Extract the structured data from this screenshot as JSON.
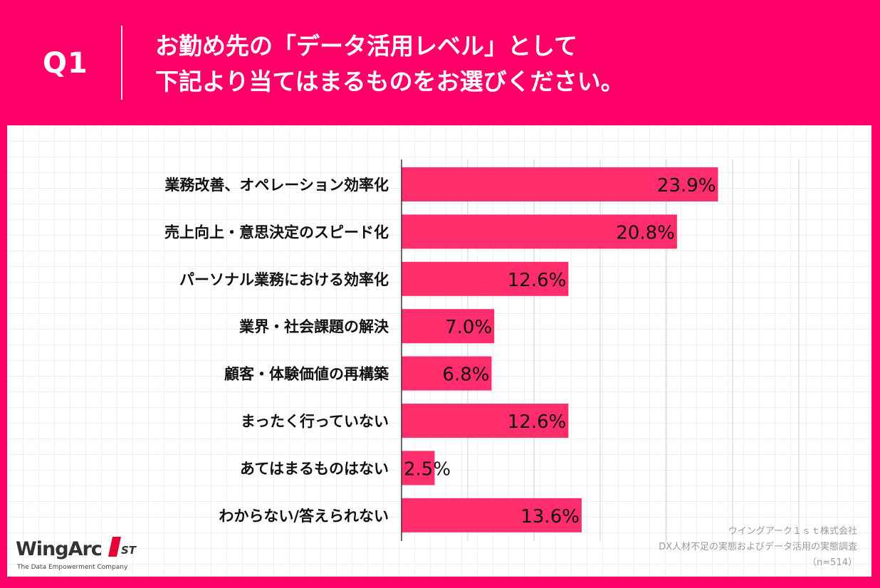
{
  "header": {
    "q_label": "Q1",
    "question_line1": "お勤め先の「データ活用レベル」として",
    "question_line2": "下記より当てはまるものをお選びください。"
  },
  "colors": {
    "background": "#ff0069",
    "bar": "#ff2d6c",
    "panel": "#ffffff"
  },
  "chart_data": {
    "type": "bar",
    "orientation": "horizontal",
    "categories": [
      "業務改善、オペレーション効率化",
      "売上向上・意思決定のスピード化",
      "パーソナル業務における効率化",
      "業界・社会課題の解決",
      "顧客・体験価値の再構築",
      "まったく行っていない",
      "あてはまるものはない",
      "わからない/答えられない"
    ],
    "values": [
      23.9,
      20.8,
      12.6,
      7.0,
      6.8,
      12.6,
      2.5,
      13.6
    ],
    "value_labels": [
      "23.9%",
      "20.8%",
      "12.6%",
      "7.0%",
      "6.8%",
      "12.6%",
      "2.5%",
      "13.6%"
    ],
    "xlim": [
      0,
      30
    ],
    "grid": true,
    "legend": "none"
  },
  "logo": {
    "word": "WingArc",
    "mark": "1ST",
    "tagline": "The Data Empowerment Company"
  },
  "credit": {
    "company": "ウイングアーク１ｓｔ株式会社",
    "survey": "DX人材不足の実態およびデータ活用の実態調査",
    "sample": "（n=514）"
  }
}
